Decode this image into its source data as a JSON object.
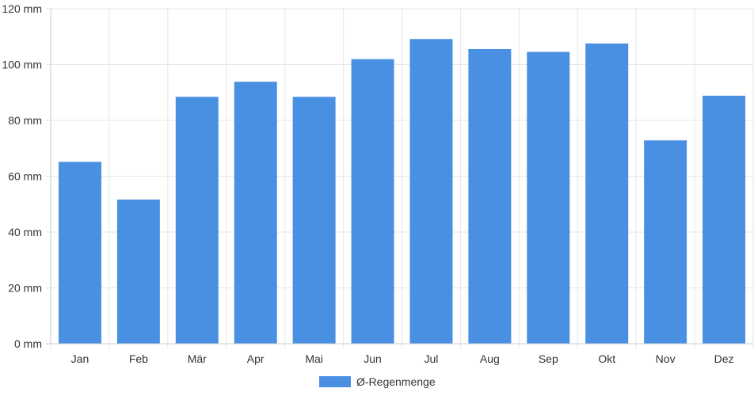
{
  "chart_data": {
    "type": "bar",
    "categories": [
      "Jan",
      "Feb",
      "Mär",
      "Apr",
      "Mai",
      "Jun",
      "Jul",
      "Aug",
      "Sep",
      "Okt",
      "Nov",
      "Dez"
    ],
    "series": [
      {
        "name": "Ø-Regenmenge",
        "color": "#4a90e2",
        "values": [
          65,
          51.5,
          88.3,
          93.7,
          88.3,
          101.8,
          109,
          105.4,
          104.4,
          107.4,
          72.7,
          88.7
        ]
      }
    ],
    "y_ticks": [
      "0 mm",
      "20 mm",
      "40 mm",
      "60 mm",
      "80 mm",
      "100 mm",
      "120 mm"
    ],
    "ylim": [
      0,
      120
    ],
    "y_unit": "mm",
    "grid": true,
    "legend_position": "bottom-center"
  }
}
